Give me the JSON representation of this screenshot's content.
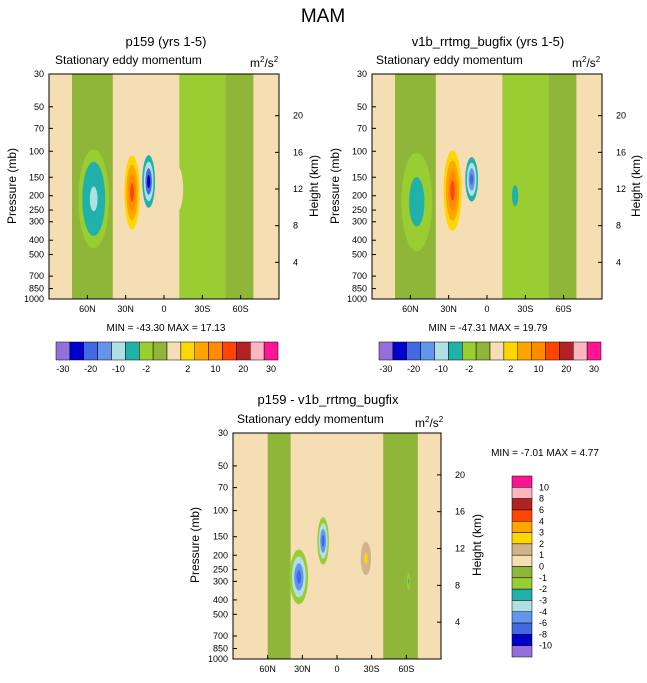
{
  "figure": {
    "title": "MAM"
  },
  "colors": {
    "lev_-30": "#9370DB",
    "lev_-25": "#0000CD",
    "lev_-20": "#4169E1",
    "lev_-15": "#6495ED",
    "lev_-10": "#B0E0E6",
    "lev_-5": "#20B2AA",
    "lev_-2": "#9ACD32",
    "lev_0": "#8FB638",
    "lev_2": "#F5DEB3",
    "lev_5": "#FFD700",
    "lev_10": "#FFA500",
    "lev_15": "#FF8C00",
    "lev_20": "#FF4500",
    "lev_25": "#B22222",
    "lev_30": "#FFB6C1",
    "lev_35": "#FF1493"
  },
  "chart_data": [
    {
      "id": "p159",
      "type": "contour",
      "title": "p159 (yrs 1-5)",
      "subtitle": "Stationary eddy momentum",
      "units_base": "m",
      "units_sup1": "2",
      "units_mid": "/s",
      "units_sup2": "2",
      "ylabel": "Pressure (mb)",
      "ylabel_right": "Height (km)",
      "stats": "MIN = -43.30  MAX =  17.13",
      "min": -43.3,
      "max": 17.13,
      "pressure_ticks": [
        30,
        50,
        70,
        100,
        150,
        200,
        250,
        300,
        400,
        500,
        700,
        850,
        1000
      ],
      "pressure_tick_labels": [
        "30",
        "50",
        "70",
        "100",
        "150",
        "200",
        "250",
        "300",
        "400",
        "500",
        "700",
        "850",
        "1000"
      ],
      "height_ticks": [
        4,
        8,
        12,
        16,
        20
      ],
      "height_tick_labels": [
        "4",
        "8",
        "12",
        "16",
        "20"
      ],
      "lat_ticks": [
        60,
        30,
        0,
        -30,
        -60
      ],
      "lat_tick_labels": [
        "60N",
        "30N",
        "0",
        "30S",
        "60S"
      ],
      "xlim": [
        90,
        -90
      ],
      "ylim": [
        1000,
        30
      ],
      "features": [
        {
          "lat": 55,
          "p": 210,
          "lat_hw": 12,
          "p_top": 120,
          "p_bot": 560,
          "value": -12
        },
        {
          "lat": 25,
          "p": 190,
          "lat_hw": 6,
          "p_top": 110,
          "p_bot": 350,
          "value": 22
        },
        {
          "lat": 12,
          "p": 160,
          "lat_hw": 5,
          "p_top": 110,
          "p_bot": 250,
          "value": -28
        },
        {
          "lat": -10,
          "p": 180,
          "lat_hw": 5,
          "p_top": 130,
          "p_bot": 270,
          "value": 2
        }
      ]
    },
    {
      "id": "v1b",
      "type": "contour",
      "title": "v1b_rrtmg_bugfix (yrs 1-5)",
      "subtitle": "Stationary eddy momentum",
      "units_base": "m",
      "units_sup1": "2",
      "units_mid": "/s",
      "units_sup2": "2",
      "ylabel": "Pressure (mb)",
      "ylabel_right": "Height (km)",
      "stats": "MIN = -47.31  MAX =  19.79",
      "min": -47.31,
      "max": 19.79,
      "pressure_ticks": [
        30,
        50,
        70,
        100,
        150,
        200,
        250,
        300,
        400,
        500,
        700,
        850,
        1000
      ],
      "pressure_tick_labels": [
        "30",
        "50",
        "70",
        "100",
        "150",
        "200",
        "250",
        "300",
        "400",
        "500",
        "700",
        "850",
        "1000"
      ],
      "height_ticks": [
        4,
        8,
        12,
        16,
        20
      ],
      "height_tick_labels": [
        "4",
        "8",
        "12",
        "16",
        "20"
      ],
      "lat_ticks": [
        60,
        30,
        0,
        -30,
        -60
      ],
      "lat_tick_labels": [
        "60N",
        "30N",
        "0",
        "30S",
        "60S"
      ],
      "xlim": [
        90,
        -90
      ],
      "ylim": [
        1000,
        30
      ],
      "features": [
        {
          "lat": 55,
          "p": 220,
          "lat_hw": 12,
          "p_top": 120,
          "p_bot": 560,
          "value": -9
        },
        {
          "lat": 27,
          "p": 185,
          "lat_hw": 7,
          "p_top": 100,
          "p_bot": 350,
          "value": 24
        },
        {
          "lat": 12,
          "p": 155,
          "lat_hw": 5,
          "p_top": 110,
          "p_bot": 220,
          "value": -22
        },
        {
          "lat": -22,
          "p": 200,
          "lat_hw": 5,
          "p_top": 140,
          "p_bot": 270,
          "value": -8
        }
      ]
    },
    {
      "id": "diff",
      "type": "contour",
      "title": "p159 - v1b_rrtmg_bugfix",
      "subtitle": "Stationary eddy momentum",
      "units_base": "m",
      "units_sup1": "2",
      "units_mid": "/s",
      "units_sup2": "2",
      "ylabel": "Pressure (mb)",
      "ylabel_right": "Height (km)",
      "stats": "MIN =  -7.01  MAX =   4.77",
      "min": -7.01,
      "max": 4.77,
      "pressure_ticks": [
        30,
        50,
        70,
        100,
        150,
        200,
        250,
        300,
        400,
        500,
        700,
        850,
        1000
      ],
      "pressure_tick_labels": [
        "30",
        "50",
        "70",
        "100",
        "150",
        "200",
        "250",
        "300",
        "400",
        "500",
        "700",
        "850",
        "1000"
      ],
      "height_ticks": [
        4,
        8,
        12,
        16,
        20
      ],
      "height_tick_labels": [
        "4",
        "8",
        "12",
        "16",
        "20"
      ],
      "lat_ticks": [
        60,
        30,
        0,
        -30,
        -60
      ],
      "lat_tick_labels": [
        "60N",
        "30N",
        "0",
        "30S",
        "60S"
      ],
      "xlim": [
        90,
        -90
      ],
      "ylim": [
        1000,
        30
      ],
      "features": [
        {
          "lat": 33,
          "p": 280,
          "lat_hw": 8,
          "p_top": 180,
          "p_bot": 420,
          "value": -6
        },
        {
          "lat": 12,
          "p": 160,
          "lat_hw": 5,
          "p_top": 110,
          "p_bot": 230,
          "value": -6
        },
        {
          "lat": -25,
          "p": 210,
          "lat_hw": 6,
          "p_top": 150,
          "p_bot": 300,
          "value": 2.5
        },
        {
          "lat": -62,
          "p": 300,
          "lat_hw": 2,
          "p_top": 250,
          "p_bot": 360,
          "value": -2.5
        }
      ]
    }
  ],
  "colorbar_top": {
    "orientation": "horizontal",
    "labels": [
      "-30",
      "-20",
      "-10",
      "-2",
      "2",
      "10",
      "20",
      "30"
    ],
    "boxes": [
      "lev_-30",
      "lev_-25",
      "lev_-20",
      "lev_-15",
      "lev_-10",
      "lev_-5",
      "lev_-2",
      "lev_0",
      "lev_2",
      "lev_5",
      "lev_10",
      "lev_15",
      "lev_20",
      "lev_25",
      "lev_30",
      "lev_35"
    ]
  },
  "colorbar_diff": {
    "orientation": "vertical",
    "labels": [
      "10",
      "8",
      "6",
      "4",
      "3",
      "2",
      "1",
      "0",
      "-1",
      "-2",
      "-3",
      "-4",
      "-6",
      "-8",
      "-10"
    ],
    "boxes": [
      "#FF1493",
      "#FFB6C1",
      "#B22222",
      "#FF4500",
      "#FFA500",
      "#FFD700",
      "#D2B48C",
      "#F5DEB3",
      "#8FB638",
      "#9ACD32",
      "#20B2AA",
      "#B0E0E6",
      "#6495ED",
      "#4169E1",
      "#0000CD",
      "#9370DB"
    ]
  }
}
